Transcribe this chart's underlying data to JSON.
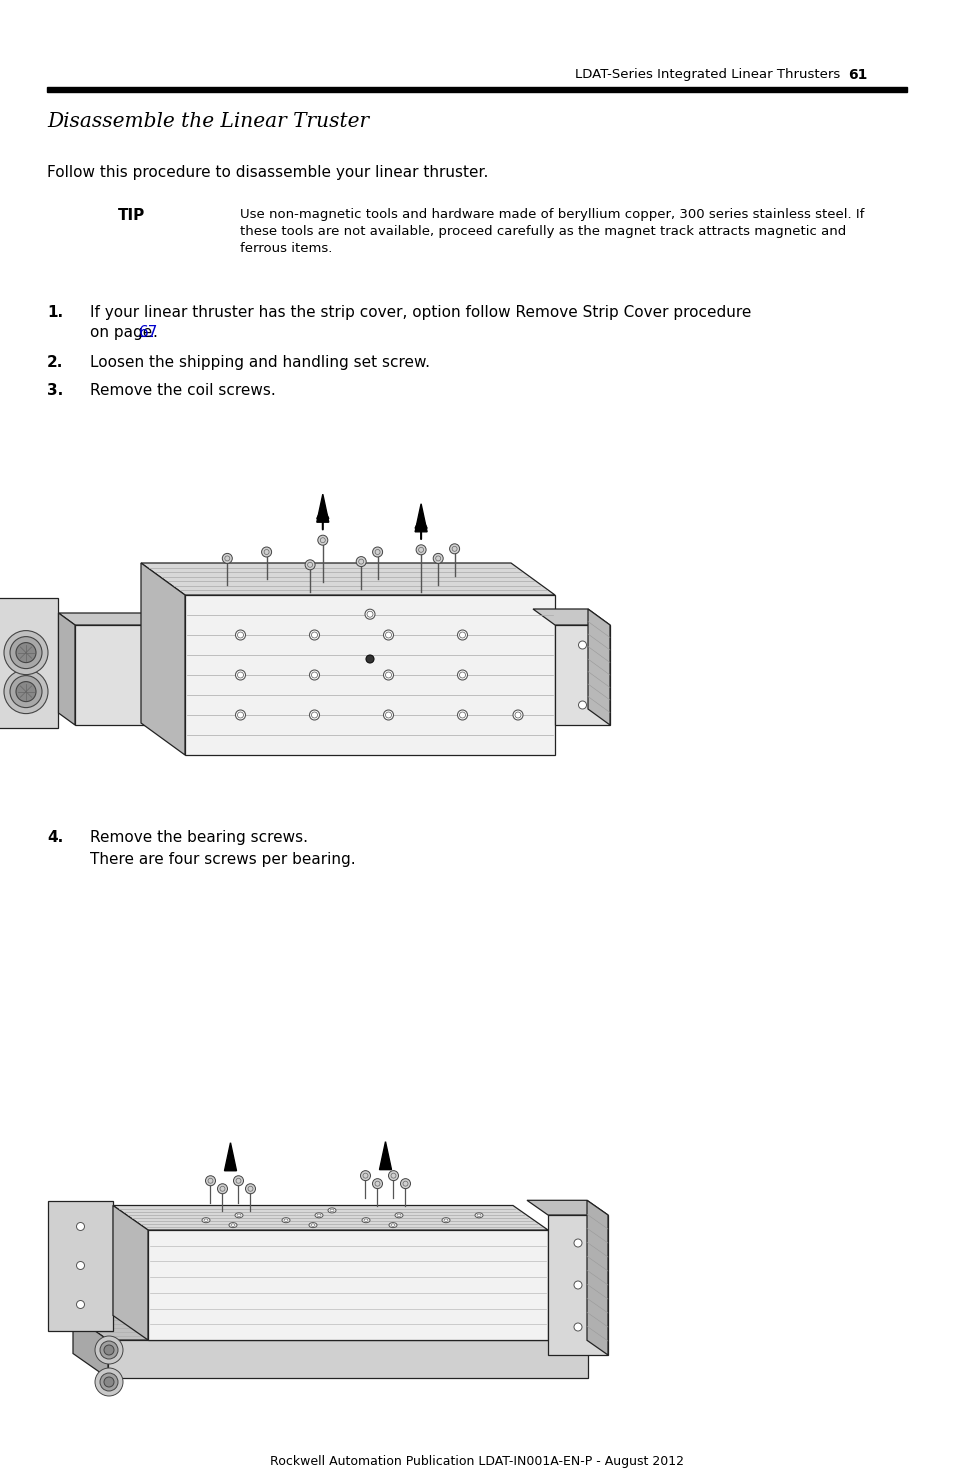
{
  "page_number": "61",
  "header_text": "LDAT-Series Integrated Linear Thrusters",
  "footer_text": "Rockwell Automation Publication LDAT-IN001A-EN-P - August 2012",
  "section_title": "Disassemble the Linear Truster",
  "intro_text": "Follow this procedure to disassemble your linear thruster.",
  "tip_label": "TIP",
  "tip_lines": [
    "Use non-magnetic tools and hardware made of beryllium copper, 300 series stainless steel. If",
    "these tools are not available, proceed carefully as the magnet track attracts magnetic and",
    "ferrous items."
  ],
  "step1_line1": "If your linear thruster has the strip cover, option follow Remove Strip Cover procedure",
  "step1_line2_pre": "on page ",
  "step1_link": "67",
  "step2_text": "Loosen the shipping and handling set screw.",
  "step3_text": "Remove the coil screws.",
  "step4_text": "Remove the bearing screws.",
  "step4_extra": "There are four screws per bearing.",
  "bg_color": "#ffffff",
  "text_color": "#000000",
  "link_color": "#0000cc",
  "header_bar_color": "#000000",
  "line_color": "#222222",
  "face_light": "#f2f2f2",
  "face_mid": "#d8d8d8",
  "face_dark": "#b8b8b8",
  "face_darker": "#999999"
}
